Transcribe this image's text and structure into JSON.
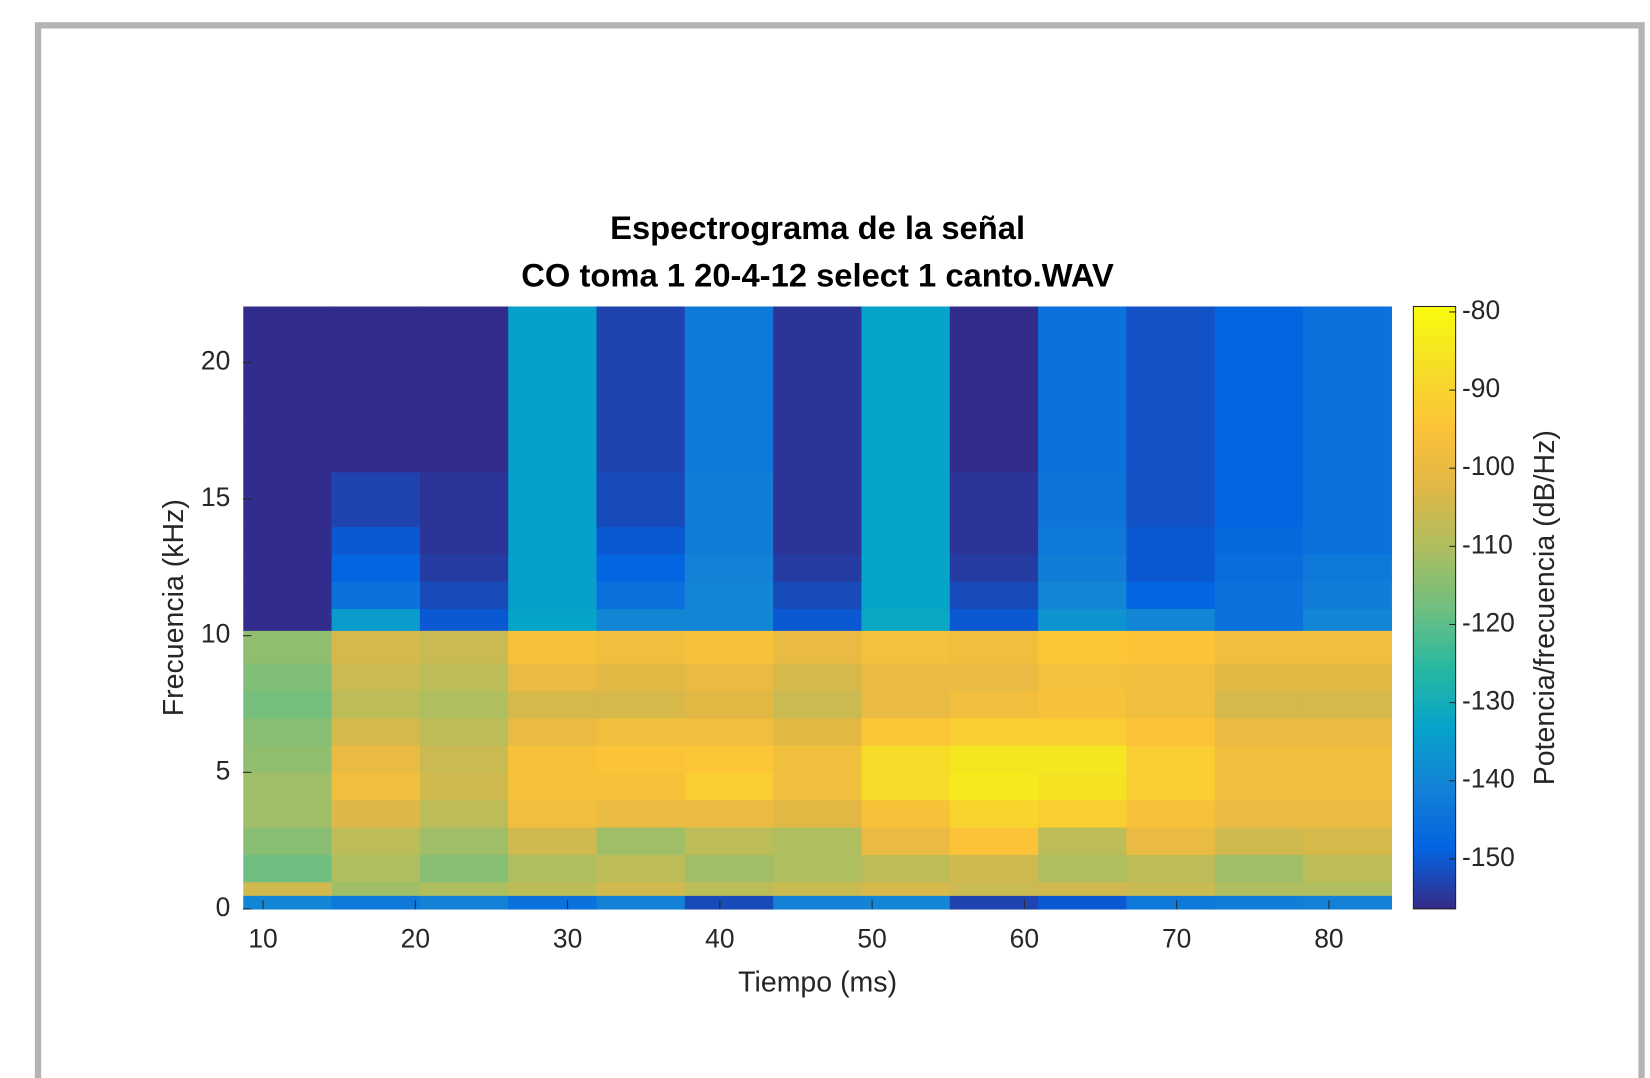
{
  "chart_data": {
    "type": "heatmap",
    "title": "Espectrograma de la señal",
    "subtitle": "CO toma 1  20-4-12 select 1 canto.WAV",
    "x_label": "Tiempo (ms)",
    "y_label": "Frecuencia (kHz)",
    "colorbar_label": "Potencia/frecuencia (dB/Hz)",
    "colormap": "parula",
    "x": [
      11.6,
      17.4,
      23.2,
      29.0,
      34.8,
      40.6,
      46.4,
      52.2,
      58.0,
      63.8,
      69.6,
      75.4,
      81.2
    ],
    "y_bins": [
      0,
      0.5,
      1,
      2,
      3,
      4,
      5,
      6,
      7,
      8,
      9,
      10.2,
      11,
      12,
      13,
      14,
      16,
      18,
      22.05
    ],
    "values": [
      [
        -140,
        -143,
        -141,
        -145,
        -141,
        -152,
        -141,
        -140,
        -153,
        -150,
        -143,
        -142,
        -141
      ],
      [
        -105,
        -112,
        -110,
        -108,
        -105,
        -108,
        -106,
        -104,
        -106,
        -105,
        -106,
        -110,
        -110
      ],
      [
        -118,
        -110,
        -115,
        -110,
        -108,
        -112,
        -110,
        -108,
        -105,
        -110,
        -108,
        -112,
        -108
      ],
      [
        -115,
        -108,
        -112,
        -105,
        -112,
        -108,
        -110,
        -100,
        -95,
        -108,
        -100,
        -105,
        -104
      ],
      [
        -112,
        -103,
        -108,
        -98,
        -100,
        -100,
        -102,
        -96,
        -90,
        -92,
        -96,
        -100,
        -100
      ],
      [
        -112,
        -98,
        -105,
        -96,
        -96,
        -92,
        -98,
        -88,
        -84,
        -86,
        -92,
        -98,
        -98
      ],
      [
        -114,
        -100,
        -106,
        -96,
        -95,
        -94,
        -98,
        -88,
        -85,
        -85,
        -92,
        -98,
        -98
      ],
      [
        -115,
        -104,
        -108,
        -100,
        -98,
        -98,
        -102,
        -94,
        -92,
        -92,
        -95,
        -100,
        -100
      ],
      [
        -117,
        -108,
        -110,
        -104,
        -104,
        -102,
        -106,
        -100,
        -98,
        -96,
        -98,
        -104,
        -104
      ],
      [
        -116,
        -106,
        -108,
        -100,
        -102,
        -100,
        -104,
        -100,
        -100,
        -97,
        -98,
        -102,
        -102
      ],
      [
        -114,
        -104,
        -106,
        -96,
        -98,
        -96,
        -100,
        -97,
        -98,
        -94,
        -95,
        -98,
        -98
      ],
      [
        -156,
        -135,
        -150,
        -133,
        -140,
        -140,
        -150,
        -132,
        -150,
        -137,
        -140,
        -145,
        -140
      ],
      [
        -156,
        -145,
        -152,
        -134,
        -145,
        -140,
        -152,
        -133,
        -152,
        -140,
        -148,
        -145,
        -142
      ],
      [
        -156,
        -148,
        -154,
        -134,
        -148,
        -141,
        -154,
        -133,
        -154,
        -142,
        -150,
        -146,
        -143
      ],
      [
        -156,
        -150,
        -155,
        -134,
        -150,
        -142,
        -155,
        -133,
        -155,
        -143,
        -150,
        -147,
        -145
      ],
      [
        -156,
        -153,
        -155,
        -134,
        -152,
        -142,
        -155,
        -133,
        -155,
        -144,
        -151,
        -148,
        -145
      ],
      [
        -156,
        -156,
        -156,
        -134,
        -153,
        -143,
        -155,
        -133,
        -156,
        -145,
        -151,
        -148,
        -145
      ],
      [
        -156,
        -156,
        -156,
        -134,
        -153,
        -143,
        -155,
        -133,
        -156,
        -145,
        -151,
        -148,
        -145
      ]
    ],
    "xlim": [
      8.68,
      84.16
    ],
    "xticks": [
      10,
      20,
      30,
      40,
      50,
      60,
      70,
      80
    ],
    "ylim": [
      0,
      22.05
    ],
    "yticks": [
      0,
      5,
      10,
      15,
      20
    ],
    "clim": [
      -156.4,
      -79.3
    ],
    "cticks": [
      -80,
      -90,
      -100,
      -110,
      -120,
      -130,
      -140,
      -150
    ],
    "grid": false
  }
}
